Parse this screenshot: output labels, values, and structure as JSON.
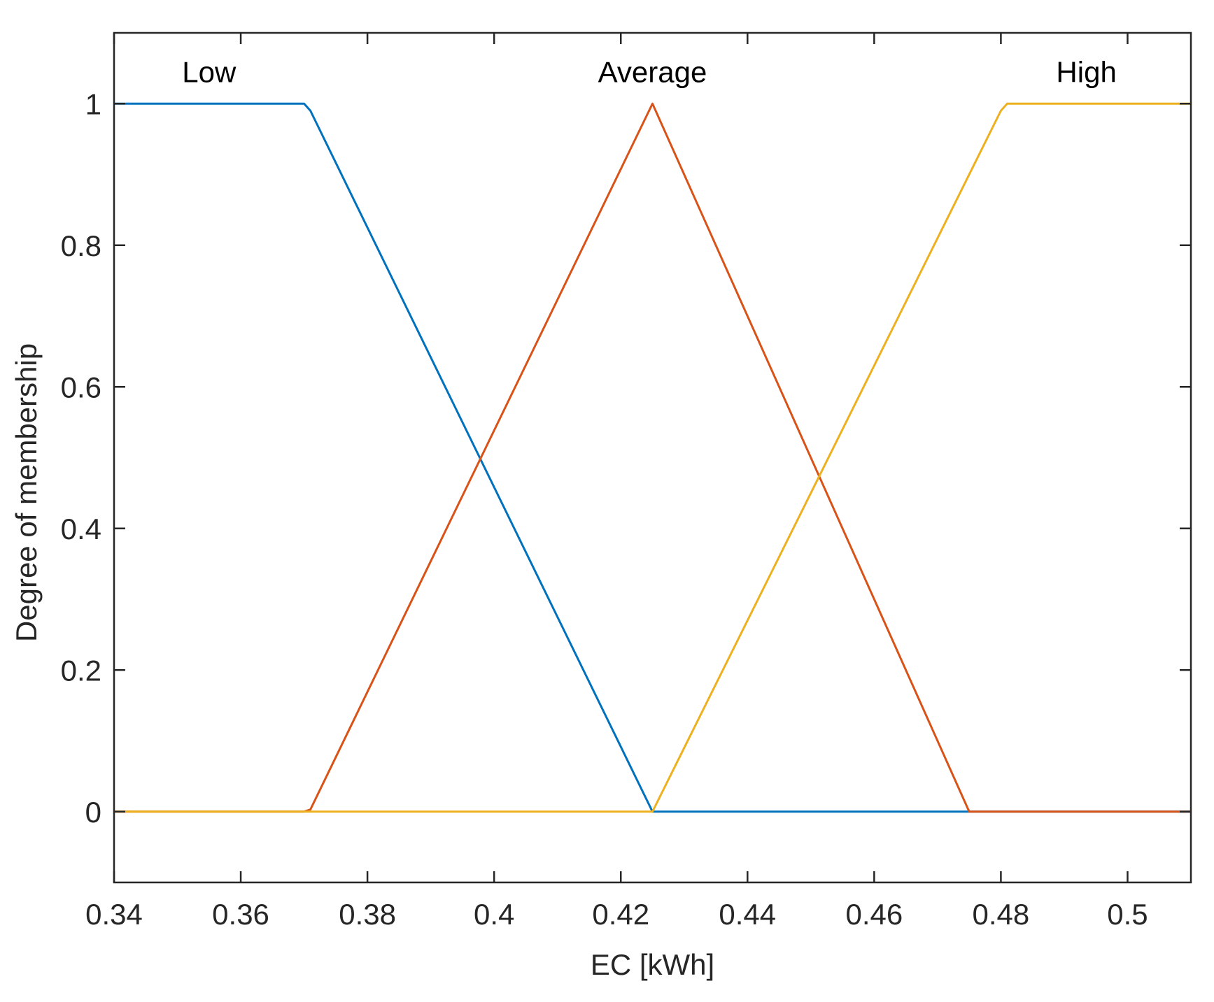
{
  "chart_data": {
    "type": "line",
    "title": "",
    "xlabel": "EC [kWh]",
    "ylabel": "Degree of membership",
    "xlim": [
      0.34,
      0.51
    ],
    "ylim": [
      -0.1,
      1.1
    ],
    "grid": false,
    "x_ticks": [
      0.34,
      0.36,
      0.38,
      0.4,
      0.42,
      0.44,
      0.46,
      0.48,
      0.5
    ],
    "x_tick_labels": [
      "0.34",
      "0.36",
      "0.38",
      "0.4",
      "0.42",
      "0.44",
      "0.46",
      "0.48",
      "0.5"
    ],
    "y_ticks": [
      0,
      0.2,
      0.4,
      0.6,
      0.8,
      1
    ],
    "y_tick_labels": [
      "0",
      "0.2",
      "0.4",
      "0.6",
      "0.8",
      "1"
    ],
    "series": [
      {
        "name": "Low",
        "color": "#0072BD",
        "x": [
          0.34,
          0.37,
          0.371,
          0.425,
          0.51
        ],
        "y": [
          1,
          1,
          0.99,
          0,
          0
        ]
      },
      {
        "name": "Average",
        "color": "#D95319",
        "x": [
          0.34,
          0.37,
          0.371,
          0.425,
          0.475,
          0.51
        ],
        "y": [
          0,
          0,
          0.003,
          1,
          0,
          0
        ]
      },
      {
        "name": "High",
        "color": "#EDB120",
        "x": [
          0.34,
          0.425,
          0.48,
          0.481,
          0.51
        ],
        "y": [
          0,
          0,
          0.99,
          1,
          1
        ]
      }
    ],
    "annotations": [
      {
        "text": "Low",
        "x": 0.355,
        "y": 1.045
      },
      {
        "text": "Average",
        "x": 0.425,
        "y": 1.045
      },
      {
        "text": "High",
        "x": 0.4935,
        "y": 1.045
      }
    ]
  }
}
